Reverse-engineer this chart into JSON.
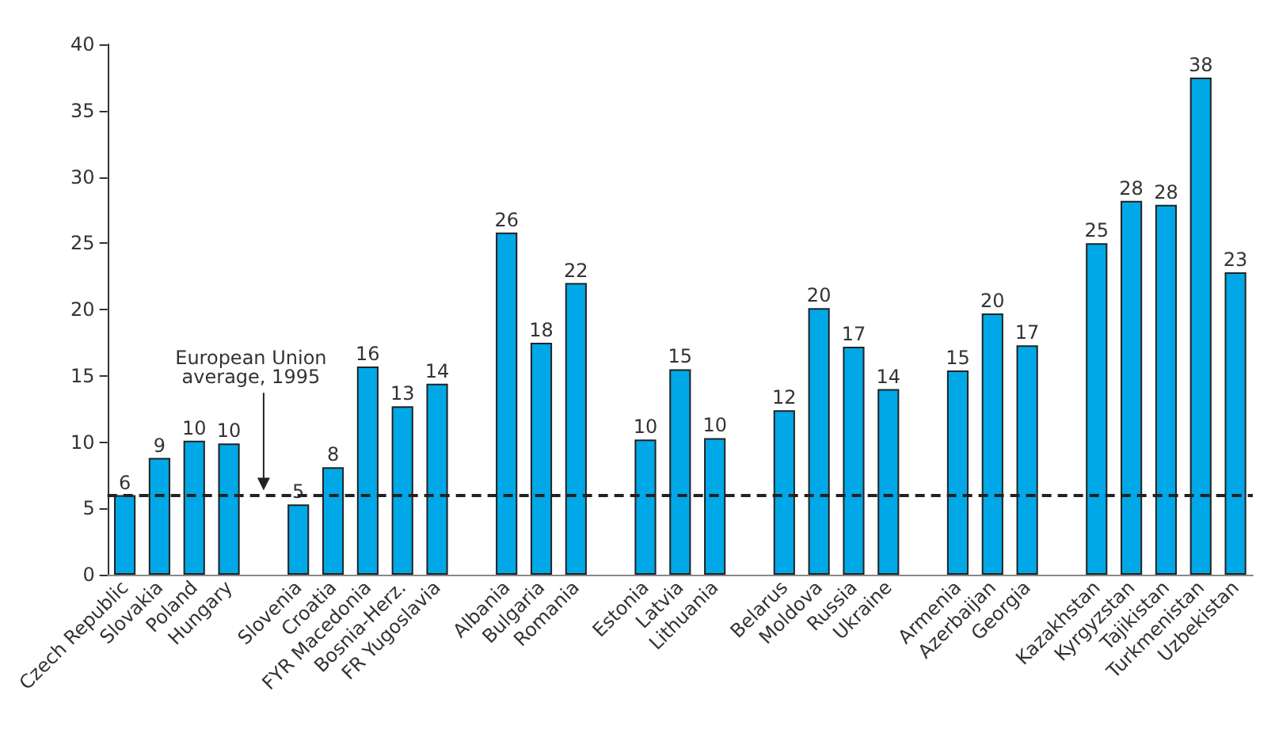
{
  "chart_data": {
    "type": "bar",
    "categories": [
      "Czech Republic",
      "Slovakia",
      "Poland",
      "Hungary",
      null,
      "Slovenia",
      "Croatia",
      "FYR Macedonia",
      "Bosnia-Herz.",
      "FR Yugoslavia",
      null,
      "Albania",
      "Bulgaria",
      "Romania",
      null,
      "Estonia",
      "Latvia",
      "Lithuania",
      null,
      "Belarus",
      "Moldova",
      "Russia",
      "Ukraine",
      null,
      "Armenia",
      "Azerbaijan",
      "Georgia",
      null,
      "Kazakhstan",
      "Kyrgyzstan",
      "Tajikistan",
      "Turkmenistan",
      "Uzbekistan"
    ],
    "values": [
      6.0,
      8.8,
      10.1,
      9.9,
      null,
      5.3,
      8.1,
      15.7,
      12.7,
      14.4,
      null,
      25.8,
      17.5,
      22.0,
      null,
      10.2,
      15.5,
      10.3,
      null,
      12.4,
      20.1,
      17.2,
      14.0,
      null,
      15.4,
      19.7,
      17.3,
      null,
      25.0,
      28.2,
      27.9,
      37.5,
      22.8
    ],
    "value_labels": [
      "6",
      "9",
      "10",
      "10",
      null,
      "5",
      "8",
      "16",
      "13",
      "14",
      null,
      "26",
      "18",
      "22",
      null,
      "10",
      "15",
      "10",
      null,
      "12",
      "20",
      "17",
      "14",
      null,
      "15",
      "20",
      "17",
      null,
      "25",
      "28",
      "28",
      "38",
      "23"
    ],
    "color": "#00a8e8",
    "ylim": [
      0,
      40
    ],
    "yticks": [
      0,
      5,
      10,
      15,
      20,
      25,
      30,
      35,
      40
    ],
    "grid": false,
    "ref_lines": [
      {
        "axis": "y",
        "value": 6,
        "label": "European Union\naverage, 1995",
        "color": "#222222",
        "line_style": "dashed"
      }
    ]
  }
}
